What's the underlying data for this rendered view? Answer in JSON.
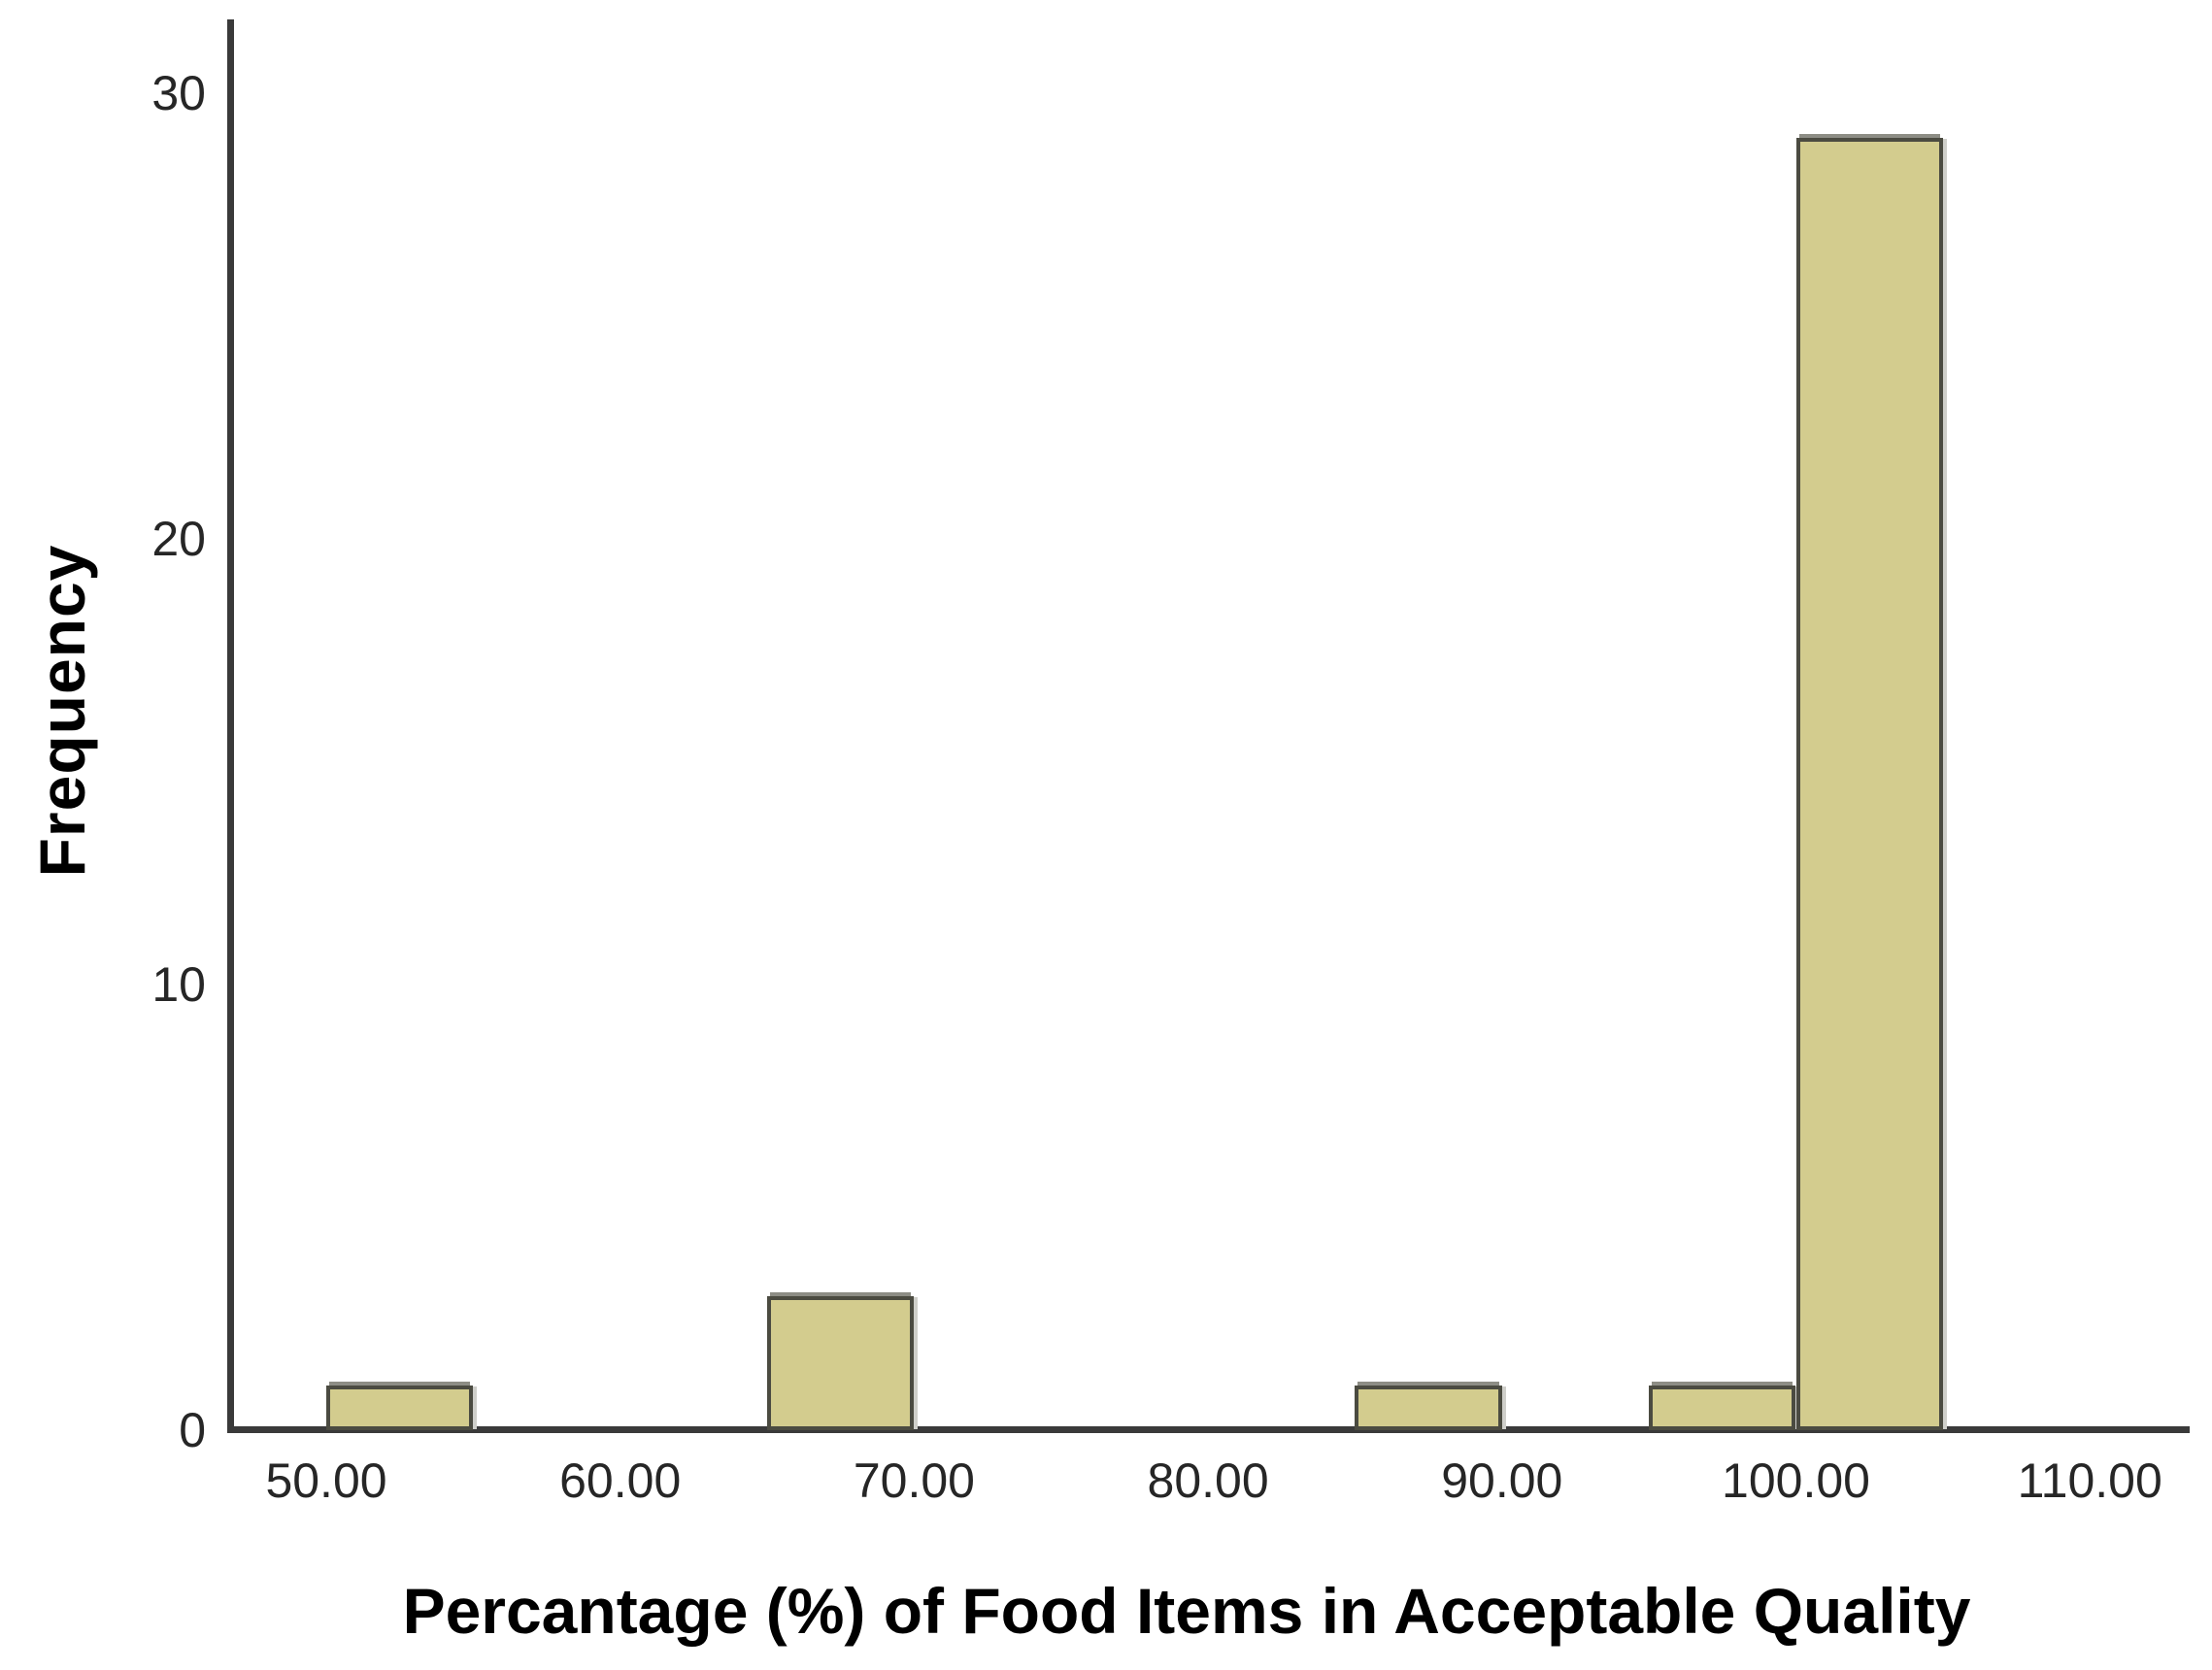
{
  "chart_data": {
    "type": "bar",
    "subtype": "histogram",
    "title": "",
    "xlabel": "Percantage (%) of Food Items in Acceptable Quality",
    "ylabel": "Frequency",
    "x_ticks": [
      {
        "value": 50,
        "label": "50.00"
      },
      {
        "value": 60,
        "label": "60.00"
      },
      {
        "value": 70,
        "label": "70.00"
      },
      {
        "value": 80,
        "label": "80.00"
      },
      {
        "value": 90,
        "label": "90.00"
      },
      {
        "value": 100,
        "label": "100.00"
      },
      {
        "value": 110,
        "label": "110.00"
      }
    ],
    "y_ticks": [
      {
        "value": 0,
        "label": "0"
      },
      {
        "value": 10,
        "label": "10"
      },
      {
        "value": 20,
        "label": "20"
      },
      {
        "value": 30,
        "label": "30"
      }
    ],
    "bins": [
      {
        "x0": 50,
        "x1": 55,
        "frequency": 1
      },
      {
        "x0": 65,
        "x1": 70,
        "frequency": 3
      },
      {
        "x0": 85,
        "x1": 90,
        "frequency": 1
      },
      {
        "x0": 95,
        "x1": 100,
        "frequency": 1
      },
      {
        "x0": 100,
        "x1": 105,
        "frequency": 29
      }
    ],
    "xlim": [
      46.6,
      113.4
    ],
    "ylim": [
      0,
      31.7
    ],
    "grid": false,
    "legend": null,
    "colors": {
      "bar_fill": "#d3cc8e",
      "bar_border": "#4b4b41",
      "bar_top_highlight": "#8d8d85",
      "bar_right_shadow": "#cfcfca",
      "axis_line": "#3a3a3a",
      "tick_text": "#262626",
      "title_text": "#000000",
      "background": "#ffffff"
    }
  }
}
